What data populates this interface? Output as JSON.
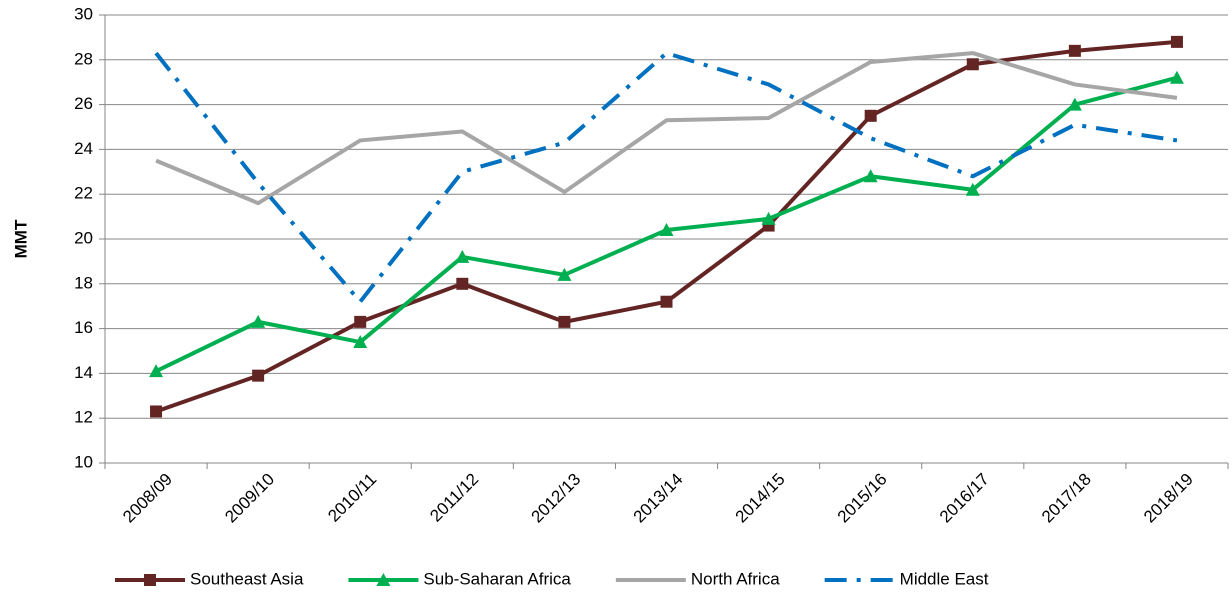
{
  "chart_data": {
    "type": "line",
    "y_label": "MMT",
    "categories": [
      "2008/09",
      "2009/10",
      "2010/11",
      "2011/12",
      "2012/13",
      "2013/14",
      "2014/15",
      "2015/16",
      "2016/17",
      "2017/18",
      "2018/19"
    ],
    "series": [
      {
        "name": "Southeast Asia",
        "color": "#632523",
        "marker": "square",
        "line_style": "solid",
        "values": [
          12.3,
          13.9,
          16.3,
          18.0,
          16.3,
          17.2,
          20.6,
          25.5,
          27.8,
          28.4,
          28.8
        ]
      },
      {
        "name": "Sub-Saharan Africa",
        "color": "#00b050",
        "marker": "triangle",
        "line_style": "solid",
        "values": [
          14.1,
          16.3,
          15.4,
          19.2,
          18.4,
          20.4,
          20.9,
          22.8,
          22.2,
          26.0,
          27.2
        ]
      },
      {
        "name": "North Africa",
        "color": "#a6a6a6",
        "marker": "none",
        "line_style": "solid",
        "values": [
          23.5,
          21.6,
          24.4,
          24.8,
          22.1,
          25.3,
          25.4,
          27.9,
          28.3,
          26.9,
          26.3
        ]
      },
      {
        "name": "Middle East",
        "color": "#0070c0",
        "marker": "none",
        "line_style": "dashdot",
        "values": [
          28.3,
          22.5,
          17.2,
          23.0,
          24.3,
          28.3,
          26.9,
          24.5,
          22.8,
          25.1,
          24.4
        ]
      }
    ],
    "ylim": [
      10,
      30
    ],
    "yticks": [
      10,
      12,
      14,
      16,
      18,
      20,
      22,
      24,
      26,
      28,
      30
    ],
    "grid": true,
    "legend": "bottom"
  }
}
